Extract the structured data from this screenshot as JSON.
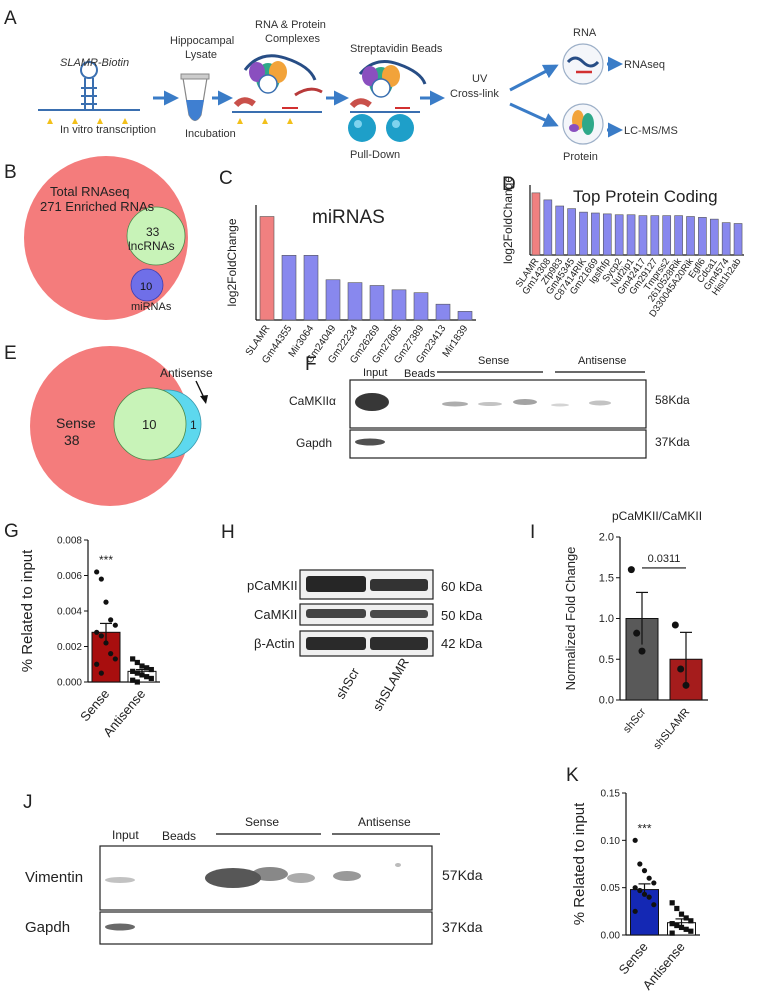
{
  "panel_labels": {
    "a": "A",
    "b": "B",
    "c": "C",
    "d": "D",
    "e": "E",
    "f": "F",
    "g": "G",
    "h": "H",
    "i": "I",
    "j": "J",
    "k": "K"
  },
  "panel_a": {
    "biotin_label": "SLAMR-Biotin",
    "ivt_label": "In vitro transcription",
    "lysate_line1": "Hippocampal",
    "lysate_line2": "Lysate",
    "incubation": "Incubation",
    "complex_line1": "RNA & Protein",
    "complex_line2": "Complexes",
    "beads": "Streptavidin Beads",
    "pulldown": "Pull-Down",
    "uv_line1": "UV",
    "uv_line2": "Cross-link",
    "rna": "RNA",
    "protein": "Protein",
    "rnaseq": "RNAseq",
    "lcms": "LC-MS/MS",
    "colors": {
      "arrow": "#3a7cc7",
      "bead": "#1e9fc9",
      "tube": "#3f7fd1",
      "star": "#f2c01a"
    }
  },
  "panel_b": {
    "total_line1": "Total RNAseq",
    "total_line2": "271 Enriched RNAs",
    "lnc_count": "33",
    "lnc_label": "lncRNAs",
    "mi_count": "10",
    "mi_label": "miRNAs",
    "colors": {
      "total": "#f47c7c",
      "lnc": "#c8f3b8",
      "mi": "#6f6fe8"
    }
  },
  "panel_e": {
    "sense_label": "Sense",
    "sense_count": "38",
    "overlap_count": "10",
    "anti_count": "1",
    "anti_label": "Antisense",
    "colors": {
      "sense": "#f47c7c",
      "overlap": "#c8f3b8",
      "anti": "#5dd8ee"
    }
  },
  "blot_f": {
    "col_input": "Input",
    "col_beads": "Beads",
    "col_sense": "Sense",
    "col_antisense": "Antisense",
    "row1_label": "CaMKIIα",
    "row1_size": "58Kda",
    "row2_label": "Gapdh",
    "row2_size": "37Kda"
  },
  "blot_h": {
    "row1_label": "pCaMKII",
    "row1_size": "60 kDa",
    "row2_label": "CaMKII",
    "row2_size": "50 kDa",
    "row3_label": "β-Actin",
    "row3_size": "42 kDa",
    "lane1": "shScr",
    "lane2": "shSLAMR"
  },
  "blot_j": {
    "col_input": "Input",
    "col_beads": "Beads",
    "col_sense": "Sense",
    "col_antisense": "Antisense",
    "row1_label": "Vimentin",
    "row1_size": "57Kda",
    "row2_label": "Gapdh",
    "row2_size": "37Kda"
  },
  "chart_data": [
    {
      "id": "C",
      "type": "bar",
      "title": "miRNAS",
      "xlabel": "",
      "ylabel": "log2FoldChange",
      "categories": [
        "SLAMR",
        "Gm44355",
        "Mir3064",
        "Gm24049",
        "Gm22234",
        "Gm26269",
        "Gm27805",
        "Gm27389",
        "Gm23413",
        "Mir1839"
      ],
      "values": [
        7.2,
        4.5,
        4.5,
        2.8,
        2.6,
        2.4,
        2.1,
        1.9,
        1.1,
        0.6
      ],
      "ylim": [
        0,
        8
      ],
      "colors": {
        "highlight": "#f08080",
        "bar": "#8888ee"
      }
    },
    {
      "id": "D",
      "type": "bar",
      "title": "Top Protein Coding",
      "xlabel": "",
      "ylabel": "log2FoldChange",
      "categories": [
        "SLAMR",
        "Gm14308",
        "Zfp983",
        "Gm45345",
        "C87414RIK",
        "Gm21669",
        "Igsfhfp",
        "Sycp2",
        "Nuf2ip1",
        "Gm42417",
        "Gm29127",
        "Tmprss2",
        "2610528Rik",
        "D330045A20Rik",
        "Egfl6",
        "Cdca1",
        "Gm4574",
        "Hist1h2ab"
      ],
      "values": [
        7.1,
        6.3,
        5.6,
        5.3,
        4.9,
        4.8,
        4.7,
        4.6,
        4.6,
        4.5,
        4.5,
        4.5,
        4.5,
        4.4,
        4.3,
        4.1,
        3.7,
        3.6
      ],
      "ylim": [
        0,
        8
      ],
      "colors": {
        "highlight": "#f08080",
        "bar": "#8888ee"
      }
    },
    {
      "id": "G",
      "type": "bar",
      "title": "",
      "xlabel": "",
      "ylabel": "% Related to input",
      "categories": [
        "Sense",
        "Antisense"
      ],
      "values": [
        0.0028,
        0.0006
      ],
      "errors": [
        0.0005,
        0.0001
      ],
      "points": [
        [
          0.0062,
          0.0058,
          0.0045,
          0.0035,
          0.0032,
          0.0028,
          0.0026,
          0.0022,
          0.0016,
          0.0013,
          0.001,
          0.0005
        ],
        [
          0.0013,
          0.0011,
          0.0009,
          0.0008,
          0.0007,
          0.0006,
          0.0005,
          0.0004,
          0.0003,
          0.0002,
          0.0001,
          0.0
        ]
      ],
      "ylim": [
        0,
        0.008
      ],
      "yticks": [
        "0.000",
        "0.002",
        "0.004",
        "0.006",
        "0.008"
      ],
      "significance": "***",
      "colors": {
        "sense": "#a80e0e",
        "antisense": "#ffffff"
      }
    },
    {
      "id": "I",
      "type": "bar",
      "title": "pCaMKII/CaMKII",
      "xlabel": "",
      "ylabel": "Normalized Fold Change",
      "categories": [
        "shScr",
        "shSLAMR"
      ],
      "values": [
        1.0,
        0.5
      ],
      "errors": [
        0.32,
        0.33
      ],
      "points": [
        [
          1.6,
          0.82,
          0.6
        ],
        [
          0.92,
          0.38,
          0.18
        ]
      ],
      "ylim": [
        0,
        2.0
      ],
      "yticks": [
        "0.0",
        "0.5",
        "1.0",
        "1.5",
        "2.0"
      ],
      "pvalue": "0.0311",
      "colors": {
        "shScr": "#595959",
        "shSLAMR": "#a51c1c"
      }
    },
    {
      "id": "K",
      "type": "bar",
      "title": "",
      "xlabel": "",
      "ylabel": "% Related to input",
      "categories": [
        "Sense",
        "Antisense"
      ],
      "values": [
        0.048,
        0.013
      ],
      "errors": [
        0.006,
        0.004
      ],
      "points": [
        [
          0.1,
          0.075,
          0.068,
          0.06,
          0.055,
          0.05,
          0.047,
          0.043,
          0.04,
          0.032,
          0.025
        ],
        [
          0.034,
          0.028,
          0.022,
          0.018,
          0.015,
          0.012,
          0.01,
          0.008,
          0.006,
          0.004,
          0.002
        ]
      ],
      "ylim": [
        0,
        0.15
      ],
      "yticks": [
        "0.00",
        "0.05",
        "0.10",
        "0.15"
      ],
      "significance": "***",
      "colors": {
        "sense": "#1428b4",
        "antisense": "#ffffff"
      }
    }
  ]
}
